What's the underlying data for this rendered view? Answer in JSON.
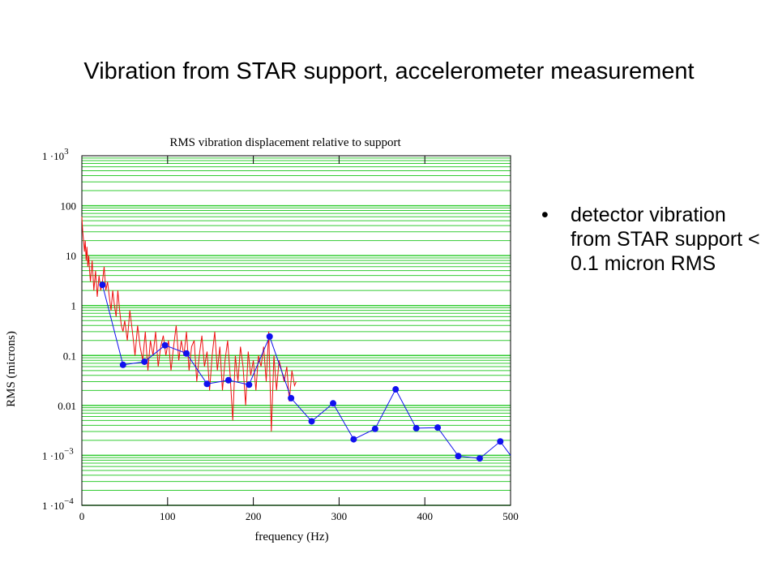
{
  "slide": {
    "title": "Vibration from STAR support, accelerometer measurement",
    "bullets": [
      "detector vibration from STAR support < 0.1 micron RMS"
    ]
  },
  "colors": {
    "grid": "#33cc33",
    "raw": "#ee1111",
    "binned": "#1111ee"
  },
  "chart_data": {
    "type": "line",
    "title": "RMS vibration displacement relative to support",
    "xlabel": "frequency (Hz)",
    "ylabel": "RMS (microns)",
    "xlim": [
      0,
      500
    ],
    "ylim": [
      0.0001,
      1000
    ],
    "yscale": "log",
    "grid": true,
    "x_ticks": [
      "0",
      "100",
      "200",
      "300",
      "400",
      "500"
    ],
    "y_ticks": [
      {
        "value": 1000,
        "mantissa": "1 ·10",
        "exp": "3"
      },
      {
        "value": 100,
        "mantissa": "100",
        "exp": ""
      },
      {
        "value": 10,
        "mantissa": "10",
        "exp": ""
      },
      {
        "value": 1,
        "mantissa": "1",
        "exp": ""
      },
      {
        "value": 0.1,
        "mantissa": "0.1",
        "exp": ""
      },
      {
        "value": 0.01,
        "mantissa": "0.01",
        "exp": ""
      },
      {
        "value": 0.001,
        "mantissa": "1 ·10",
        "exp": "−3"
      },
      {
        "value": 0.0001,
        "mantissa": "1 ·10",
        "exp": "−4"
      }
    ],
    "series": [
      {
        "style": "raw",
        "x": [
          0,
          1,
          2,
          3,
          4,
          5,
          6,
          7,
          8,
          9,
          10,
          12,
          14,
          16,
          18,
          20,
          22,
          24,
          26,
          28,
          30,
          32,
          34,
          36,
          38,
          40,
          42,
          44,
          46,
          48,
          50,
          53,
          56,
          59,
          62,
          65,
          68,
          71,
          74,
          77,
          80,
          83,
          86,
          89,
          92,
          95,
          98,
          101,
          104,
          107,
          110,
          113,
          116,
          119,
          122,
          125,
          128,
          131,
          134,
          137,
          140,
          143,
          146,
          149,
          152,
          155,
          158,
          161,
          164,
          167,
          170,
          173,
          176,
          179,
          182,
          185,
          188,
          191,
          194,
          197,
          200,
          203,
          206,
          209,
          212,
          215,
          218,
          221,
          224,
          227,
          230,
          233,
          236,
          239,
          242,
          245,
          248,
          250
        ],
        "y": [
          60,
          30,
          20,
          12,
          20,
          8,
          15,
          6,
          10,
          5,
          3,
          8,
          2,
          5,
          1.5,
          4,
          2,
          3,
          6,
          2,
          3,
          1.5,
          0.8,
          2,
          1,
          0.6,
          2,
          0.8,
          0.4,
          0.3,
          0.5,
          0.2,
          0.8,
          0.3,
          0.1,
          0.4,
          0.15,
          0.08,
          0.3,
          0.05,
          0.2,
          0.1,
          0.3,
          0.06,
          0.15,
          0.25,
          0.1,
          0.2,
          0.05,
          0.15,
          0.4,
          0.08,
          0.2,
          0.1,
          0.3,
          0.05,
          0.15,
          0.2,
          0.03,
          0.1,
          0.25,
          0.06,
          0.12,
          0.02,
          0.1,
          0.3,
          0.05,
          0.15,
          0.02,
          0.08,
          0.2,
          0.04,
          0.005,
          0.1,
          0.03,
          0.15,
          0.06,
          0.01,
          0.12,
          0.04,
          0.08,
          0.02,
          0.1,
          0.06,
          0.15,
          0.03,
          0.3,
          0.003,
          0.1,
          0.02,
          0.08,
          0.05,
          0.03,
          0.06,
          0.012,
          0.05,
          0.025,
          0.03
        ]
      },
      {
        "style": "binned",
        "x": [
          24,
          48,
          73,
          97,
          122,
          146,
          171,
          195,
          219,
          244,
          268,
          293,
          317,
          342,
          366,
          390,
          415,
          439,
          464,
          488,
          500
        ],
        "y": [
          2.6,
          0.065,
          0.075,
          0.16,
          0.11,
          0.027,
          0.032,
          0.026,
          0.24,
          0.014,
          0.0048,
          0.011,
          0.0021,
          0.0034,
          0.021,
          0.0035,
          0.0036,
          0.00097,
          0.00087,
          0.0019,
          0.001
        ]
      }
    ]
  }
}
